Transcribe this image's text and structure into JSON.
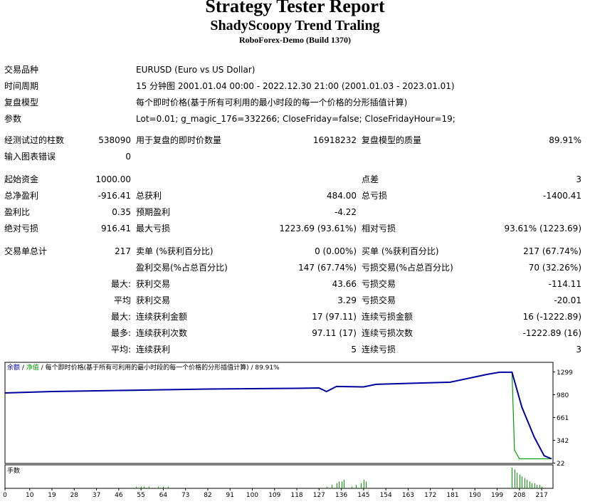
{
  "header": {
    "title": "Strategy Tester Report",
    "subtitle": "ShadyScoopy Trend Traling",
    "broker": "RoboForex-Demo (Build 1370)"
  },
  "info": {
    "symbol_label": "交易品种",
    "symbol_value": "EURUSD (Euro vs US Dollar)",
    "period_label": "时间周期",
    "period_value": "15 分钟图 2001.01.04 00:00 - 2022.12.30 21:00 (2001.01.03 - 2023.01.01)",
    "model_label": "复盘模型",
    "model_value": "每个即时价格(基于所有可利用的最小时段的每一个价格的分形插值计算)",
    "params_label": "参数",
    "params_value": "Lot=0.01; g_magic_176=332266; CloseFriday=false; CloseFridayHour=19;"
  },
  "stats": {
    "bars_label": "经测试过的柱数",
    "bars_value": "538090",
    "ticks_label": "用于复盘的即时价数量",
    "ticks_value": "16918232",
    "quality_label": "复盘模型的质量",
    "quality_value": "89.91%",
    "errors_label": "输入图表错误",
    "errors_value": "0",
    "deposit_label": "起始资金",
    "deposit_value": "1000.00",
    "spread_label": "点差",
    "spread_value": "3",
    "net_label": "总净盈利",
    "net_value": "-916.41",
    "gross_profit_label": "总获利",
    "gross_profit_value": "484.00",
    "gross_loss_label": "总亏损",
    "gross_loss_value": "-1400.41",
    "pf_label": "盈利比",
    "pf_value": "0.35",
    "expected_label": "预期盈利",
    "expected_value": "-4.22",
    "abs_dd_label": "绝对亏损",
    "abs_dd_value": "916.41",
    "max_dd_label": "最大亏损",
    "max_dd_value": "1223.69 (93.61%)",
    "rel_dd_label": "相对亏损",
    "rel_dd_value": "93.61% (1223.69)",
    "total_trades_label": "交易单总计",
    "total_trades_value": "217",
    "short_label": "卖单 (%获利百分比)",
    "short_value": "0 (0.00%)",
    "long_label": "买单 (%获利百分比)",
    "long_value": "217 (67.74%)",
    "profit_trades_label": "盈利交易(%占总百分比)",
    "profit_trades_value": "147 (67.74%)",
    "loss_trades_label": "亏损交易(%占总百分比)",
    "loss_trades_value": "70 (32.26%)",
    "largest_prefix": "最大:",
    "largest_profit_label": "获利交易",
    "largest_profit_value": "43.66",
    "largest_loss_label": "亏损交易",
    "largest_loss_value": "-114.11",
    "average_prefix": "平均",
    "avg_profit_label": "获利交易",
    "avg_profit_value": "3.29",
    "avg_loss_label": "亏损交易",
    "avg_loss_value": "-20.01",
    "max_prefix": "最大:",
    "max_cons_wins_label": "连续获利金额",
    "max_cons_wins_value": "17 (97.11)",
    "max_cons_losses_label": "连续亏损金额",
    "max_cons_losses_value": "16 (-1222.89)",
    "most_prefix": "最多:",
    "max_cons_profit_label": "连续获利次数",
    "max_cons_profit_value": "97.11 (17)",
    "max_cons_loss_label": "连续亏损次数",
    "max_cons_loss_value": "-1222.89 (16)",
    "avg_cons_prefix": "平均:",
    "avg_cons_wins_label": "连续获利",
    "avg_cons_wins_value": "5",
    "avg_cons_losses_label": "连续亏损",
    "avg_cons_losses_value": "3"
  },
  "colors": {
    "balance": "#0000a0",
    "equity": "#00a000",
    "volume": "#00a000",
    "axis": "#000000"
  },
  "chart_data": [
    {
      "type": "line",
      "legend": [
        "余额",
        "净值",
        "每个即时价格(基于所有可利用的最小时段的每一个价格的分形插值计算) / 89.91%"
      ],
      "legend_separators": [
        " / ",
        " / "
      ],
      "ylim": [
        22,
        1299
      ],
      "yticks": [
        "1299",
        "980",
        "661",
        "342",
        "22"
      ],
      "series": [
        {
          "name": "余额",
          "color": "#0000a0",
          "points": [
            [
              0,
              1000
            ],
            [
              19,
              1020
            ],
            [
              37,
              1030
            ],
            [
              55,
              1040
            ],
            [
              64,
              1045
            ],
            [
              82,
              1055
            ],
            [
              100,
              1060
            ],
            [
              118,
              1065
            ],
            [
              127,
              1070
            ],
            [
              130,
              1020
            ],
            [
              134,
              1090
            ],
            [
              145,
              1085
            ],
            [
              150,
              1120
            ],
            [
              165,
              1135
            ],
            [
              180,
              1150
            ],
            [
              195,
              1260
            ],
            [
              200,
              1290
            ],
            [
              205,
              1290
            ],
            [
              209,
              800
            ],
            [
              214,
              380
            ],
            [
              218,
              120
            ],
            [
              221,
              77
            ]
          ]
        },
        {
          "name": "净值",
          "color": "#00a000",
          "points": [
            [
              0,
              1000
            ],
            [
              19,
              1020
            ],
            [
              37,
              1030
            ],
            [
              55,
              1035
            ],
            [
              64,
              1045
            ],
            [
              82,
              1055
            ],
            [
              100,
              1060
            ],
            [
              118,
              1065
            ],
            [
              127,
              1070
            ],
            [
              130,
              1020
            ],
            [
              134,
              1090
            ],
            [
              145,
              1085
            ],
            [
              150,
              1120
            ],
            [
              165,
              1135
            ],
            [
              180,
              1150
            ],
            [
              195,
              1260
            ],
            [
              200,
              1290
            ],
            [
              205,
              1290
            ],
            [
              206,
              200
            ],
            [
              208,
              77
            ],
            [
              221,
              77
            ]
          ]
        }
      ]
    },
    {
      "type": "bar",
      "legend": "手数",
      "xticks": [
        "0",
        "10",
        "19",
        "28",
        "37",
        "46",
        "55",
        "64",
        "73",
        "82",
        "91",
        "100",
        "109",
        "118",
        "127",
        "136",
        "145",
        "154",
        "163",
        "172",
        "181",
        "190",
        "199",
        "208",
        "217"
      ],
      "xlim": [
        0,
        221
      ],
      "values_note": "lot size per trade",
      "bars": [
        [
          53,
          1
        ],
        [
          55,
          1
        ],
        [
          56,
          1
        ],
        [
          58,
          1
        ],
        [
          62,
          1
        ],
        [
          64,
          1
        ],
        [
          66,
          1
        ],
        [
          130,
          1
        ],
        [
          132,
          2
        ],
        [
          134,
          3
        ],
        [
          135,
          4
        ],
        [
          136,
          4
        ],
        [
          137,
          5
        ],
        [
          140,
          1
        ],
        [
          142,
          2
        ],
        [
          144,
          3
        ],
        [
          145,
          5
        ],
        [
          146,
          4
        ],
        [
          205,
          12
        ],
        [
          206,
          11
        ],
        [
          207,
          9
        ],
        [
          208,
          8
        ],
        [
          209,
          7
        ],
        [
          210,
          6
        ],
        [
          211,
          5
        ],
        [
          212,
          4
        ],
        [
          213,
          3
        ],
        [
          214,
          3
        ],
        [
          215,
          2
        ],
        [
          216,
          2
        ],
        [
          217,
          1
        ]
      ]
    }
  ]
}
